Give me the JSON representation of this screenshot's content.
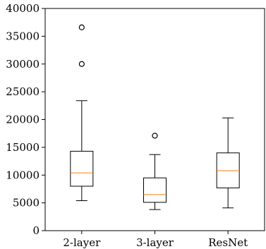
{
  "chart_data": {
    "type": "box",
    "title": "",
    "xlabel": "",
    "ylabel": "",
    "ylim": [
      0,
      40000
    ],
    "y_ticks": [
      0,
      5000,
      10000,
      15000,
      20000,
      25000,
      30000,
      35000,
      40000
    ],
    "categories": [
      "2-layer",
      "3-layer",
      "ResNet"
    ],
    "boxes": [
      {
        "name": "2-layer",
        "whisker_low": 5400,
        "q1": 8000,
        "median": 10400,
        "q3": 14300,
        "whisker_high": 23400,
        "outliers": [
          30000,
          36600
        ]
      },
      {
        "name": "3-layer",
        "whisker_low": 3800,
        "q1": 5100,
        "median": 6500,
        "q3": 9500,
        "whisker_high": 13700,
        "outliers": [
          17100
        ]
      },
      {
        "name": "ResNet",
        "whisker_low": 4100,
        "q1": 7700,
        "median": 10800,
        "q3": 14000,
        "whisker_high": 20300,
        "outliers": []
      }
    ],
    "grid": false,
    "colors": {
      "box": "#000000",
      "median": "#ff7f0e",
      "outlier": "#000000"
    }
  }
}
